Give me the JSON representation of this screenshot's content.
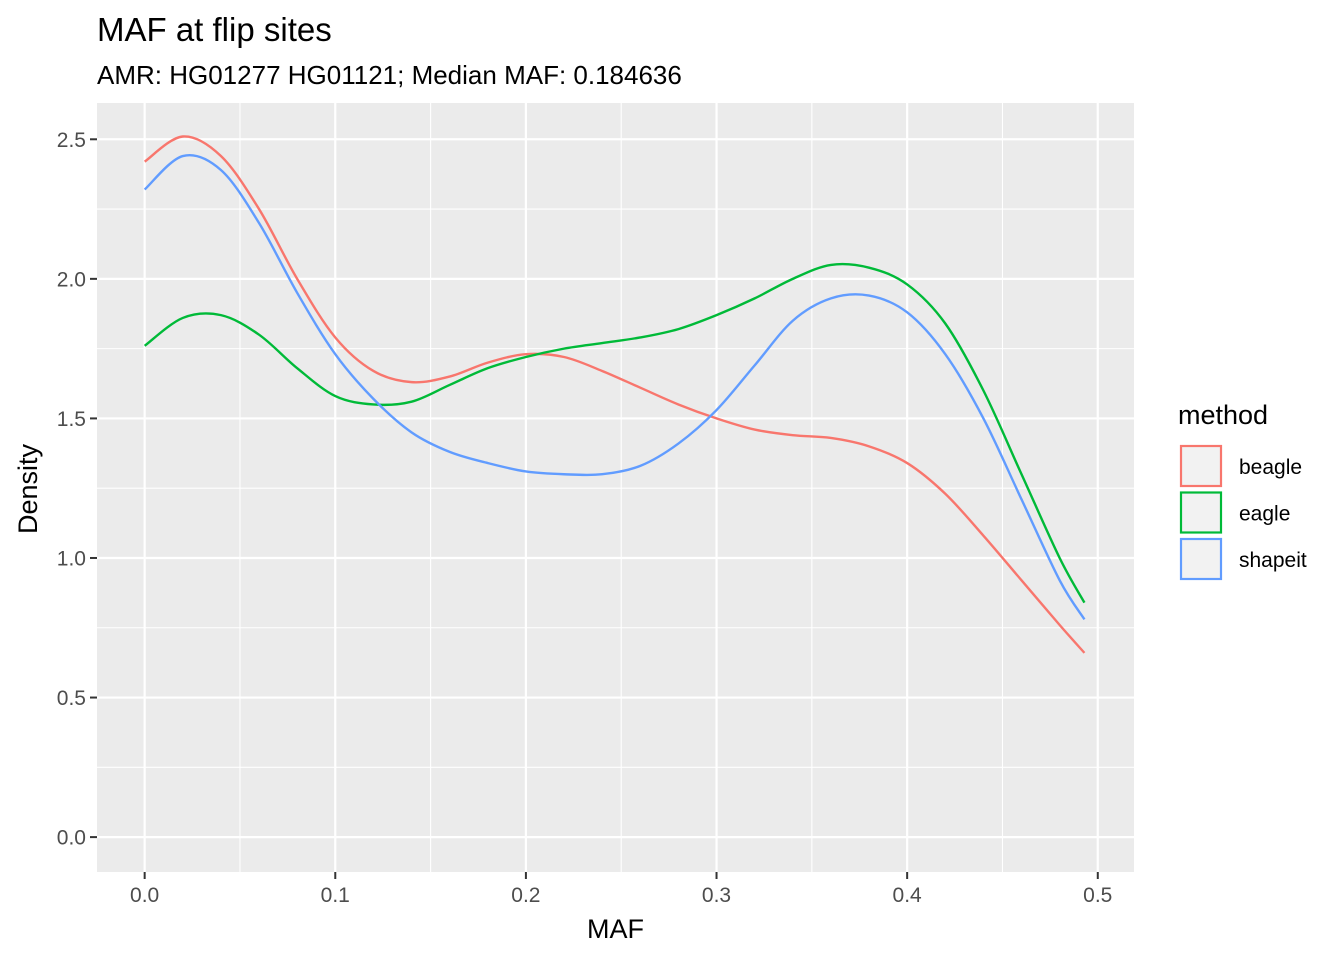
{
  "chart_data": {
    "type": "line",
    "title": "MAF at flip sites",
    "subtitle": "AMR: HG01277 HG01121; Median MAF: 0.184636",
    "xlabel": "MAF",
    "ylabel": "Density",
    "xlim": [
      -0.025,
      0.519
    ],
    "ylim": [
      -0.125,
      2.63
    ],
    "x_ticks": [
      0.0,
      0.1,
      0.2,
      0.3,
      0.4,
      0.5
    ],
    "x_tick_labels": [
      "0.0",
      "0.1",
      "0.2",
      "0.3",
      "0.4",
      "0.5"
    ],
    "y_ticks": [
      0.0,
      0.5,
      1.0,
      1.5,
      2.0,
      2.5
    ],
    "y_tick_labels": [
      "0.0",
      "0.5",
      "1.0",
      "1.5",
      "2.0",
      "2.5"
    ],
    "grid": true,
    "legend": {
      "title": "method",
      "placement": "right"
    },
    "x": [
      0.0,
      0.02,
      0.04,
      0.06,
      0.08,
      0.1,
      0.12,
      0.14,
      0.16,
      0.18,
      0.2,
      0.22,
      0.24,
      0.26,
      0.28,
      0.3,
      0.32,
      0.34,
      0.36,
      0.38,
      0.4,
      0.42,
      0.44,
      0.46,
      0.48,
      0.493
    ],
    "series": [
      {
        "name": "beagle",
        "color": "#F8766D",
        "values": [
          2.42,
          2.51,
          2.44,
          2.25,
          2.0,
          1.79,
          1.67,
          1.63,
          1.65,
          1.7,
          1.73,
          1.72,
          1.67,
          1.61,
          1.55,
          1.5,
          1.46,
          1.44,
          1.43,
          1.4,
          1.34,
          1.23,
          1.08,
          0.92,
          0.76,
          0.66
        ]
      },
      {
        "name": "eagle",
        "color": "#00BA38",
        "values": [
          1.76,
          1.86,
          1.87,
          1.8,
          1.68,
          1.58,
          1.55,
          1.56,
          1.62,
          1.68,
          1.72,
          1.75,
          1.77,
          1.79,
          1.82,
          1.87,
          1.93,
          2.0,
          2.05,
          2.04,
          1.98,
          1.84,
          1.6,
          1.3,
          1.0,
          0.84
        ]
      },
      {
        "name": "shapeit",
        "color": "#619CFF",
        "values": [
          2.32,
          2.44,
          2.39,
          2.2,
          1.95,
          1.73,
          1.57,
          1.45,
          1.38,
          1.34,
          1.31,
          1.3,
          1.3,
          1.33,
          1.41,
          1.53,
          1.69,
          1.85,
          1.93,
          1.94,
          1.88,
          1.73,
          1.5,
          1.21,
          0.92,
          0.78
        ]
      }
    ]
  }
}
